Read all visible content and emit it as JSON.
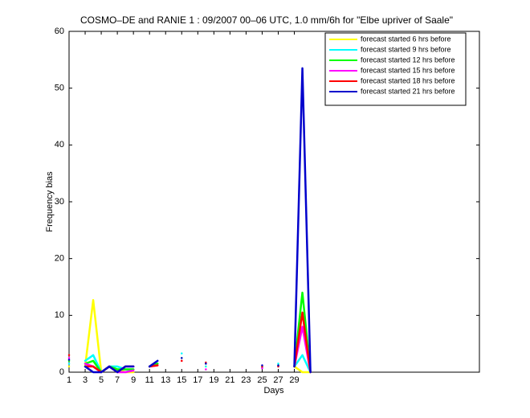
{
  "chart_data": {
    "type": "line",
    "title": "COSMO–DE and RANIE 1 : 09/2007 00–06 UTC, 1.0 mm/6h for \"Elbe upriver of Saale\"",
    "xlabel": "Days",
    "ylabel": "Frequency bias",
    "x": [
      1,
      2,
      3,
      4,
      5,
      6,
      7,
      8,
      9,
      10,
      11,
      12,
      13,
      14,
      15,
      16,
      17,
      18,
      19,
      20,
      21,
      22,
      23,
      24,
      25,
      26,
      27,
      28,
      29,
      30,
      31
    ],
    "xlim": [
      1,
      52
    ],
    "ylim": [
      0,
      60
    ],
    "xticks": [
      1,
      3,
      5,
      7,
      9,
      11,
      13,
      15,
      17,
      19,
      21,
      23,
      25,
      27,
      29
    ],
    "yticks": [
      0,
      10,
      20,
      30,
      40,
      50,
      60
    ],
    "legend_position": "top-right",
    "series": [
      {
        "name": "forecast started 6 hrs before",
        "color": "#ffff00",
        "values": [
          1,
          null,
          1,
          12.7,
          0,
          1,
          0.5,
          0,
          0,
          null,
          1,
          1.5,
          null,
          null,
          2,
          null,
          null,
          1,
          null,
          null,
          null,
          null,
          null,
          null,
          1,
          null,
          1,
          null,
          1,
          0,
          0
        ]
      },
      {
        "name": "forecast started 9 hrs before",
        "color": "#00ffff",
        "values": [
          1.5,
          null,
          2,
          3,
          0,
          1,
          1,
          0.5,
          0.5,
          null,
          1,
          1.5,
          null,
          null,
          3.3,
          null,
          null,
          1,
          null,
          null,
          null,
          null,
          null,
          null,
          1,
          null,
          1.5,
          null,
          1,
          3,
          0
        ]
      },
      {
        "name": "forecast started 12 hrs before",
        "color": "#00ff00",
        "values": [
          2,
          null,
          1.5,
          2,
          0,
          1,
          0.5,
          0.5,
          0.5,
          null,
          1,
          1.5,
          null,
          null,
          2.5,
          null,
          null,
          1.5,
          null,
          null,
          null,
          null,
          null,
          null,
          0.8,
          null,
          1.2,
          null,
          1,
          14,
          0
        ]
      },
      {
        "name": "forecast started 15 hrs before",
        "color": "#ff00ff",
        "values": [
          2.5,
          null,
          1.5,
          1,
          0,
          1,
          0,
          0,
          0.3,
          null,
          1,
          1.2,
          null,
          null,
          2,
          null,
          null,
          0.5,
          null,
          null,
          null,
          null,
          null,
          null,
          0.7,
          null,
          1,
          null,
          1,
          8,
          0
        ]
      },
      {
        "name": "forecast started 18 hrs before",
        "color": "#ff0000",
        "values": [
          3,
          null,
          1,
          1,
          0,
          1,
          0,
          1,
          1,
          null,
          1,
          1.2,
          null,
          null,
          2,
          null,
          null,
          1.7,
          null,
          null,
          null,
          null,
          null,
          null,
          1,
          null,
          1,
          null,
          1,
          10.5,
          0
        ]
      },
      {
        "name": "forecast started 21 hrs before",
        "color": "#0000cc",
        "values": [
          2.2,
          null,
          1,
          0,
          0,
          1,
          0,
          1,
          1,
          null,
          1,
          2,
          null,
          null,
          2.5,
          null,
          null,
          1.5,
          null,
          null,
          null,
          null,
          null,
          null,
          1.2,
          null,
          1.2,
          null,
          1,
          53.5,
          0
        ]
      }
    ]
  }
}
